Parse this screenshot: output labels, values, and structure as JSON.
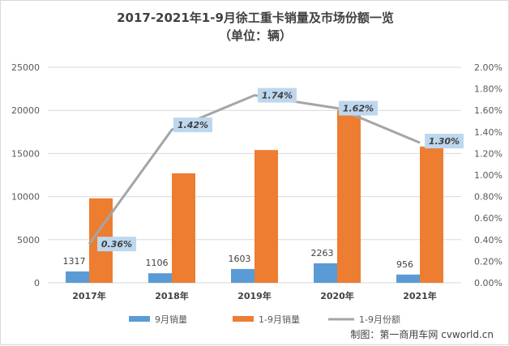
{
  "chart_data": {
    "type": "bar",
    "title": "2017-2021年1-9月徐工重卡销量及市场份额一览",
    "subtitle": "（单位：辆）",
    "categories": [
      "2017年",
      "2018年",
      "2019年",
      "2020年",
      "2021年"
    ],
    "series": [
      {
        "name": "9月销量",
        "type": "bar",
        "axis": "left",
        "color": "#5b9bd5",
        "values": [
          1317,
          1106,
          1603,
          2263,
          956
        ],
        "labels": [
          "1317",
          "1106",
          "1603",
          "2263",
          "956"
        ]
      },
      {
        "name": "1-9月销量",
        "type": "bar",
        "axis": "left",
        "color": "#ed7d31",
        "values": [
          9800,
          12700,
          15400,
          20000,
          15800
        ]
      },
      {
        "name": "1-9月份额",
        "type": "line",
        "axis": "right",
        "color": "#a5a5a5",
        "values": [
          0.36,
          1.42,
          1.74,
          1.62,
          1.3
        ],
        "labels": [
          "0.36%",
          "1.42%",
          "1.74%",
          "1.62%",
          "1.30%"
        ]
      }
    ],
    "y_left": {
      "min": 0,
      "max": 25000,
      "step": 5000,
      "ticks": [
        "0",
        "5000",
        "10000",
        "15000",
        "20000",
        "25000"
      ]
    },
    "y_right": {
      "min": 0,
      "max": 2.0,
      "step": 0.2,
      "ticks": [
        "0.00%",
        "0.20%",
        "0.40%",
        "0.60%",
        "0.80%",
        "1.00%",
        "1.20%",
        "1.40%",
        "1.60%",
        "1.80%",
        "2.00%"
      ]
    },
    "grid": true,
    "legend": "bottom"
  },
  "source": "制图：第一商用车网 cvworld.cn",
  "colors": {
    "label_box": "#bdd7ee",
    "axis": "#d9d9d9"
  }
}
